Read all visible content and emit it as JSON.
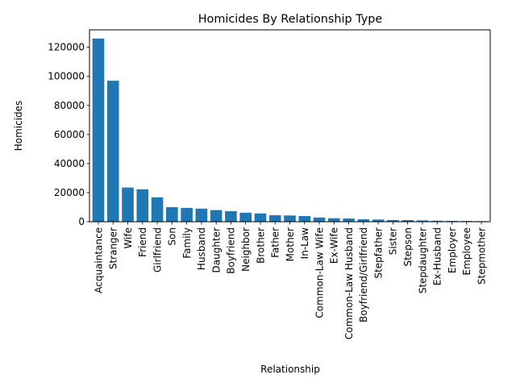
{
  "chart_data": {
    "type": "bar",
    "title": "Homicides By Relationship Type",
    "xlabel": "Relationship",
    "ylabel": "Homicides",
    "ylim": [
      0,
      132000
    ],
    "yticks": [
      0,
      20000,
      40000,
      60000,
      80000,
      100000,
      120000
    ],
    "bar_color": "#1f77b4",
    "grid": false,
    "categories": [
      "Acquaintance",
      "Stranger",
      "Wife",
      "Friend",
      "Girlfriend",
      "Son",
      "Family",
      "Husband",
      "Daughter",
      "Boyfriend",
      "Neighbor",
      "Brother",
      "Father",
      "Mother",
      "In-Law",
      "Common-Law Wife",
      "Ex-Wife",
      "Common-Law Husband",
      "Boyfriend/Girlfriend",
      "Stepfather",
      "Sister",
      "Stepson",
      "Stepdaughter",
      "Ex-Husband",
      "Employer",
      "Employee",
      "Stepmother"
    ],
    "values": [
      126000,
      97000,
      23500,
      22300,
      16800,
      10000,
      9500,
      9000,
      8000,
      7300,
      6200,
      5700,
      4500,
      4300,
      3900,
      2900,
      2400,
      2200,
      1700,
      1500,
      1200,
      1100,
      900,
      700,
      600,
      500,
      400
    ]
  }
}
